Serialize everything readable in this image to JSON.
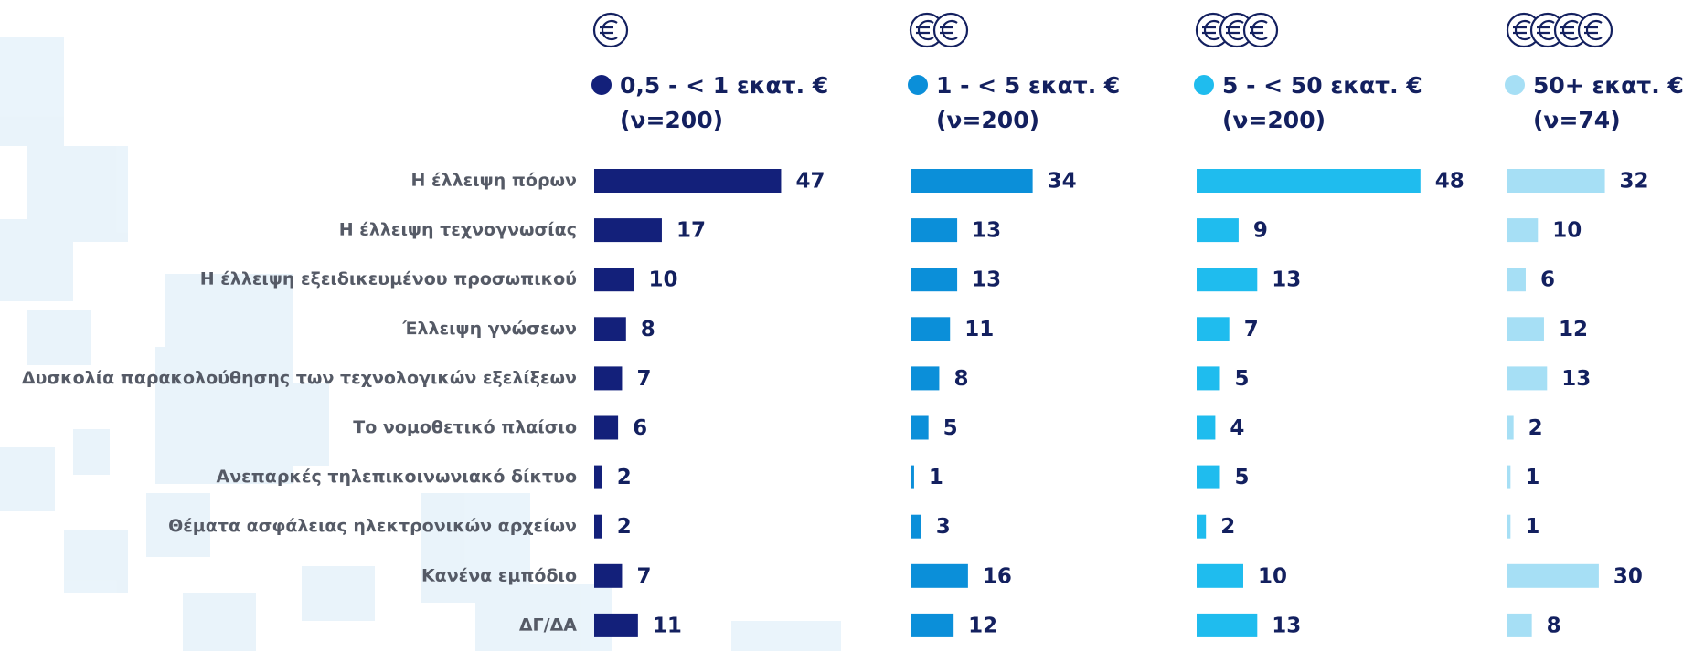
{
  "chart_data": {
    "type": "bar",
    "orientation": "horizontal",
    "categories": [
      "Η έλλειψη πόρων",
      "Η έλλειψη τεχνογνωσίας",
      "Η έλλειψη εξειδικευμένου προσωπικού",
      "Έλλειψη γνώσεων",
      "Δυσκολία παρακολούθησης των τεχνολογικών εξελίξεων",
      "Το νομοθετικό πλαίσιο",
      "Ανεπαρκές τηλεπικοινωνιακό δίκτυο",
      "Θέματα ασφάλειας ηλεκτρονικών αρχείων",
      "Κανένα εμπόδιο",
      "ΔΓ/ΔΑ"
    ],
    "series": [
      {
        "name": "0,5 - < 1 εκατ. €",
        "sample": "(ν=200)",
        "color": "#13207a",
        "values": [
          47,
          17,
          10,
          8,
          7,
          6,
          2,
          2,
          7,
          11
        ]
      },
      {
        "name": "1 - < 5 εκατ. €",
        "sample": "(ν=200)",
        "color": "#0b8fd9",
        "values": [
          34,
          13,
          13,
          11,
          8,
          5,
          1,
          3,
          16,
          12
        ]
      },
      {
        "name": "5 - < 50 εκατ. €",
        "sample": "(ν=200)",
        "color": "#1fbcee",
        "values": [
          48,
          9,
          13,
          7,
          5,
          4,
          5,
          2,
          10,
          13
        ]
      },
      {
        "name": "50+ εκατ. €",
        "sample": "(ν=74)",
        "color": "#a6dff5",
        "values": [
          32,
          10,
          6,
          12,
          13,
          2,
          1,
          1,
          30,
          8
        ]
      }
    ]
  }
}
